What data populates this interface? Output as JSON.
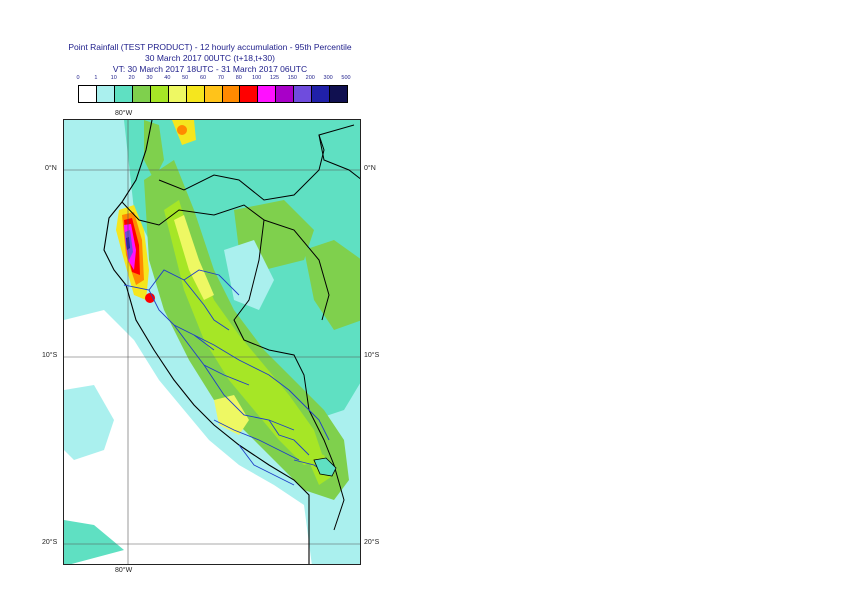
{
  "title": {
    "line1": "Point Rainfall (TEST PRODUCT) - 12 hourly accumulation - 95th Percentile",
    "line2": "30 March 2017 00UTC (t+18,t+30)",
    "line3": "VT: 30 March 2017 18UTC - 31 March 2017 06UTC"
  },
  "legend": {
    "thresholds": [
      "0",
      "1",
      "10",
      "20",
      "30",
      "40",
      "50",
      "60",
      "70",
      "80",
      "100",
      "125",
      "150",
      "200",
      "300",
      "500"
    ],
    "colors": [
      "#ffffff",
      "#aaf0ee",
      "#5fe0c2",
      "#7fd04d",
      "#a6e626",
      "#eef863",
      "#f5e61e",
      "#ffc31a",
      "#ff8a00",
      "#ff0000",
      "#ff10ff",
      "#a800c8",
      "#6f4cdd",
      "#2020a8",
      "#101050"
    ]
  },
  "axes": {
    "lon_top": "80°W",
    "lon_bottom": "80°W",
    "lat_0_left": "0°N",
    "lat_0_right": "0°N",
    "lat_10_left": "10°S",
    "lat_10_right": "10°S",
    "lat_20_left": "20°S",
    "lat_20_right": "20°S"
  }
}
